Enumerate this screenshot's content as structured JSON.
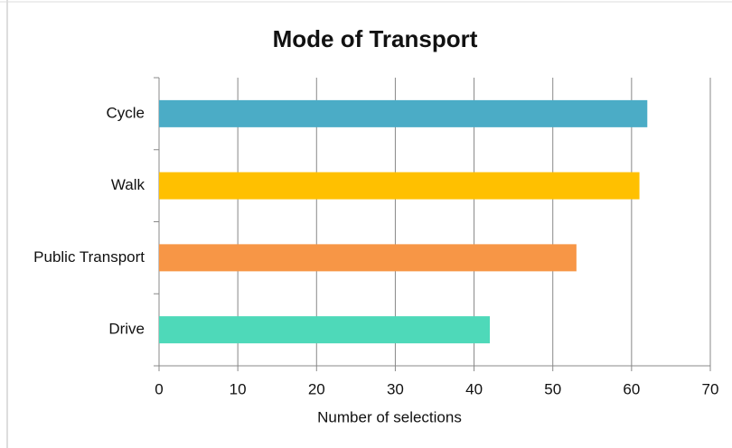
{
  "chart_data": {
    "type": "bar",
    "orientation": "horizontal",
    "title": "Mode of Transport",
    "xlabel": "Number of selections",
    "categories": [
      "Cycle",
      "Walk",
      "Public Transport",
      "Drive"
    ],
    "values": [
      62,
      61,
      53,
      42
    ],
    "colors": [
      "#4bacc6",
      "#ffc000",
      "#f79646",
      "#4ed9b9"
    ],
    "xlim": [
      0,
      70
    ],
    "xticks": [
      0,
      10,
      20,
      30,
      40,
      50,
      60,
      70
    ],
    "grid": true
  }
}
